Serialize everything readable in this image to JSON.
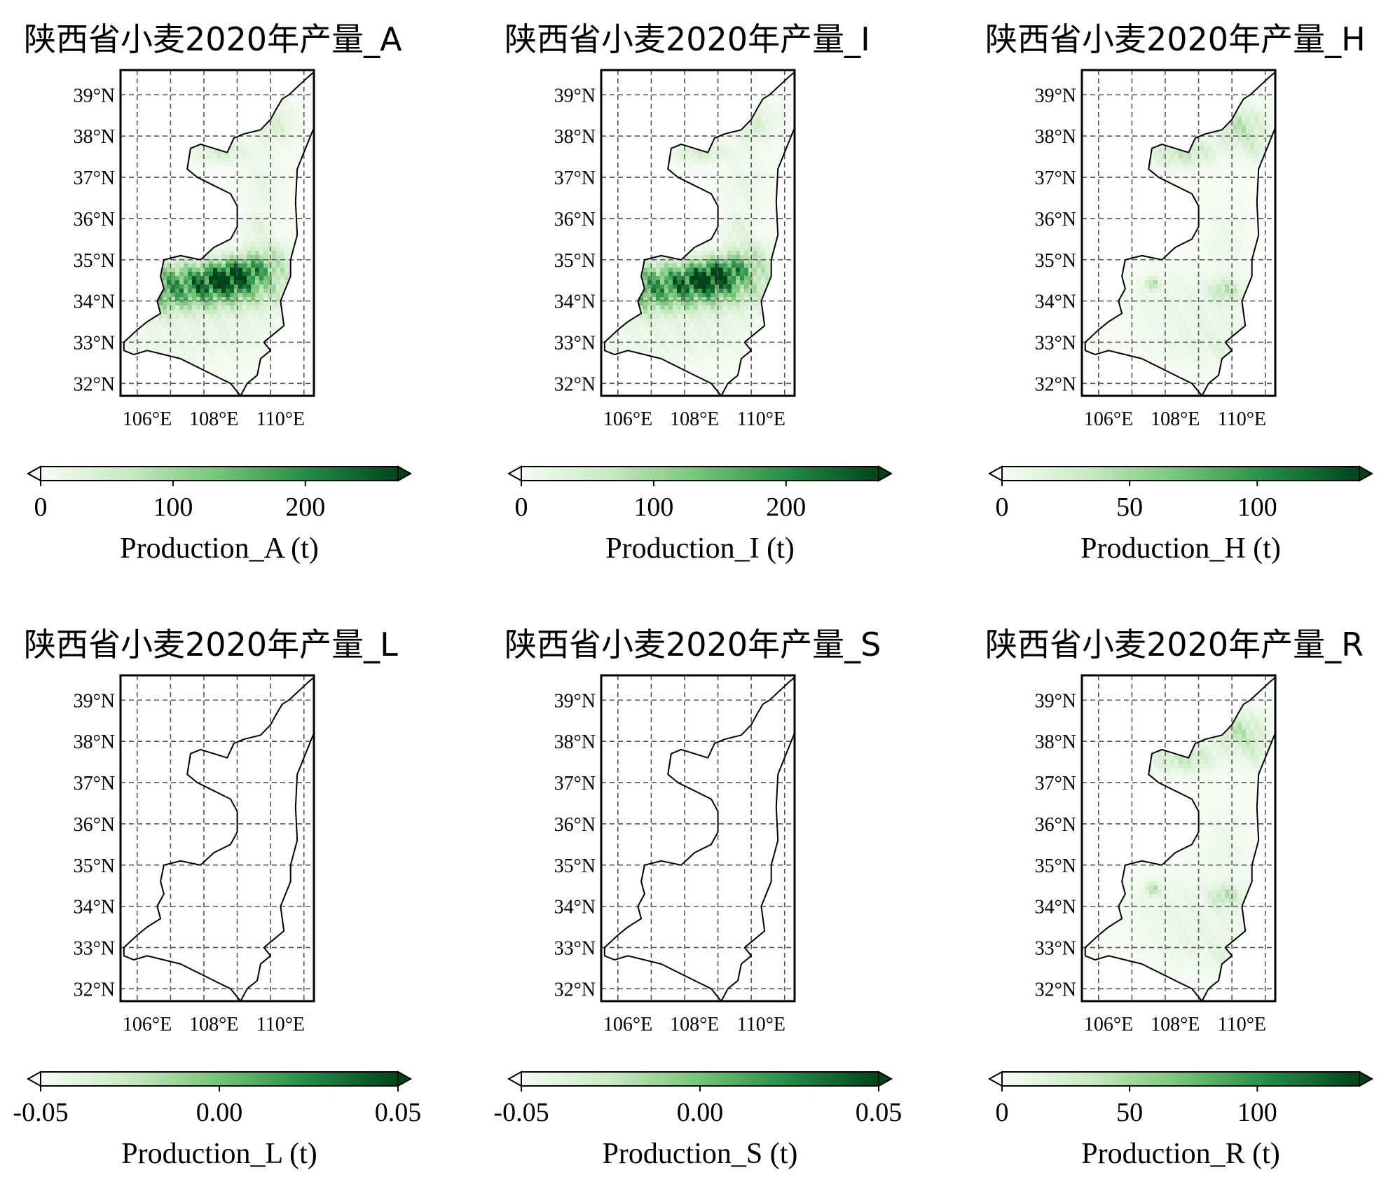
{
  "colormap": {
    "name": "Greens",
    "stops": [
      "#f7fcf5",
      "#c7e9c0",
      "#74c476",
      "#238b45",
      "#00441b"
    ]
  },
  "map_extent": {
    "lon": [
      105.2,
      111.0
    ],
    "lat": [
      31.7,
      39.6
    ]
  },
  "lat_ticks": [
    {
      "value": 39,
      "label": "39°N"
    },
    {
      "value": 38,
      "label": "38°N"
    },
    {
      "value": 37,
      "label": "37°N"
    },
    {
      "value": 36,
      "label": "36°N"
    },
    {
      "value": 35,
      "label": "35°N"
    },
    {
      "value": 34,
      "label": "34°N"
    },
    {
      "value": 33,
      "label": "33°N"
    },
    {
      "value": 32,
      "label": "32°N"
    }
  ],
  "lon_ticks": [
    {
      "value": 106,
      "label": "106°E"
    },
    {
      "value": 108,
      "label": "108°E"
    },
    {
      "value": 110,
      "label": "110°E"
    }
  ],
  "lon_grid": [
    105.7,
    106.7,
    107.7,
    108.7,
    109.7,
    110.7
  ],
  "panels": [
    {
      "title": "陕西省小麦2020年产量_A",
      "cbar_label": "Production_A (t)",
      "vmin": 0,
      "vmax": 270,
      "cbar_ticks": [
        {
          "value": 0,
          "label": "0"
        },
        {
          "value": 100,
          "label": "100"
        },
        {
          "value": 200,
          "label": "200"
        }
      ],
      "pattern": "guanzhong"
    },
    {
      "title": "陕西省小麦2020年产量_I",
      "cbar_label": "Production_I (t)",
      "vmin": 0,
      "vmax": 270,
      "cbar_ticks": [
        {
          "value": 0,
          "label": "0"
        },
        {
          "value": 100,
          "label": "100"
        },
        {
          "value": 200,
          "label": "200"
        }
      ],
      "pattern": "guanzhong"
    },
    {
      "title": "陕西省小麦2020年产量_H",
      "cbar_label": "Production_H (t)",
      "vmin": 0,
      "vmax": 140,
      "cbar_ticks": [
        {
          "value": 0,
          "label": "0"
        },
        {
          "value": 50,
          "label": "50"
        },
        {
          "value": 100,
          "label": "100"
        }
      ],
      "pattern": "north"
    },
    {
      "title": "陕西省小麦2020年产量_L",
      "cbar_label": "Production_L (t)",
      "vmin": -0.05,
      "vmax": 0.05,
      "cbar_ticks": [
        {
          "value": -0.05,
          "label": "-0.05"
        },
        {
          "value": 0,
          "label": "0.00"
        },
        {
          "value": 0.05,
          "label": "0.05"
        }
      ],
      "pattern": "none"
    },
    {
      "title": "陕西省小麦2020年产量_S",
      "cbar_label": "Production_S (t)",
      "vmin": -0.05,
      "vmax": 0.05,
      "cbar_ticks": [
        {
          "value": -0.05,
          "label": "-0.05"
        },
        {
          "value": 0,
          "label": "0.00"
        },
        {
          "value": 0.05,
          "label": "0.05"
        }
      ],
      "pattern": "none"
    },
    {
      "title": "陕西省小麦2020年产量_R",
      "cbar_label": "Production_R (t)",
      "vmin": 0,
      "vmax": 140,
      "cbar_ticks": [
        {
          "value": 0,
          "label": "0"
        },
        {
          "value": 50,
          "label": "50"
        },
        {
          "value": 100,
          "label": "100"
        }
      ],
      "pattern": "north"
    }
  ],
  "shaanxi_outline": [
    [
      111.0,
      39.55
    ],
    [
      110.85,
      39.45
    ],
    [
      110.65,
      39.3
    ],
    [
      110.45,
      39.15
    ],
    [
      110.25,
      39.0
    ],
    [
      110.05,
      38.9
    ],
    [
      109.9,
      38.7
    ],
    [
      109.7,
      38.4
    ],
    [
      109.4,
      38.15
    ],
    [
      108.9,
      38.05
    ],
    [
      108.6,
      37.95
    ],
    [
      108.4,
      37.6
    ],
    [
      108.0,
      37.7
    ],
    [
      107.6,
      37.8
    ],
    [
      107.3,
      37.7
    ],
    [
      107.2,
      37.2
    ],
    [
      107.5,
      37.0
    ],
    [
      108.0,
      36.8
    ],
    [
      108.5,
      36.6
    ],
    [
      108.7,
      36.3
    ],
    [
      108.7,
      35.8
    ],
    [
      108.5,
      35.5
    ],
    [
      108.0,
      35.3
    ],
    [
      107.6,
      35.0
    ],
    [
      107.0,
      35.1
    ],
    [
      106.5,
      35.0
    ],
    [
      106.4,
      34.6
    ],
    [
      106.5,
      34.3
    ],
    [
      106.3,
      34.0
    ],
    [
      106.4,
      33.7
    ],
    [
      106.0,
      33.5
    ],
    [
      105.7,
      33.3
    ],
    [
      105.3,
      33.0
    ],
    [
      105.3,
      32.8
    ],
    [
      105.6,
      32.7
    ],
    [
      106.0,
      32.8
    ],
    [
      106.5,
      32.7
    ],
    [
      107.0,
      32.6
    ],
    [
      107.5,
      32.4
    ],
    [
      108.0,
      32.2
    ],
    [
      108.5,
      32.0
    ],
    [
      108.8,
      31.7
    ],
    [
      109.0,
      32.0
    ],
    [
      109.3,
      32.2
    ],
    [
      109.4,
      32.6
    ],
    [
      109.7,
      32.8
    ],
    [
      109.5,
      33.0
    ],
    [
      109.8,
      33.2
    ],
    [
      110.1,
      33.4
    ],
    [
      110.0,
      34.0
    ],
    [
      110.3,
      34.6
    ],
    [
      110.3,
      35.0
    ],
    [
      110.5,
      35.6
    ],
    [
      110.45,
      36.4
    ],
    [
      110.5,
      37.2
    ],
    [
      110.7,
      37.6
    ],
    [
      111.0,
      38.2
    ],
    [
      111.0,
      39.55
    ]
  ],
  "hotspots": {
    "guanzhong": [
      [
        107.3,
        34.35,
        2.6,
        0.55,
        0.85
      ],
      [
        108.4,
        34.5,
        0.8,
        0.3,
        0.75
      ],
      [
        109.0,
        34.8,
        0.9,
        0.28,
        0.6
      ],
      [
        109.6,
        35.2,
        0.7,
        0.3,
        0.25
      ],
      [
        109.3,
        35.8,
        0.4,
        0.3,
        0.15
      ],
      [
        108.2,
        37.6,
        0.8,
        0.25,
        0.22
      ],
      [
        109.8,
        38.3,
        0.6,
        0.5,
        0.2
      ],
      [
        107.0,
        33.0,
        1.8,
        0.5,
        0.08
      ],
      [
        109.0,
        33.2,
        1.5,
        0.6,
        0.06
      ],
      [
        109.5,
        36.8,
        0.6,
        0.6,
        0.1
      ],
      [
        106.5,
        33.8,
        0.6,
        0.4,
        0.08
      ]
    ],
    "north": [
      [
        108.2,
        37.6,
        1.0,
        0.35,
        0.3
      ],
      [
        109.9,
        38.25,
        0.7,
        0.45,
        0.35
      ],
      [
        110.4,
        37.7,
        0.4,
        0.4,
        0.15
      ],
      [
        109.5,
        34.25,
        0.4,
        0.25,
        0.35
      ],
      [
        107.3,
        34.4,
        0.2,
        0.15,
        0.4
      ],
      [
        109.2,
        33.5,
        2.2,
        1.0,
        0.06
      ],
      [
        108.0,
        34.2,
        2.0,
        0.6,
        0.05
      ],
      [
        109.5,
        35.5,
        0.6,
        0.8,
        0.07
      ],
      [
        109.6,
        32.8,
        0.5,
        0.3,
        0.1
      ],
      [
        108.5,
        33.0,
        1.2,
        0.5,
        0.05
      ]
    ]
  }
}
